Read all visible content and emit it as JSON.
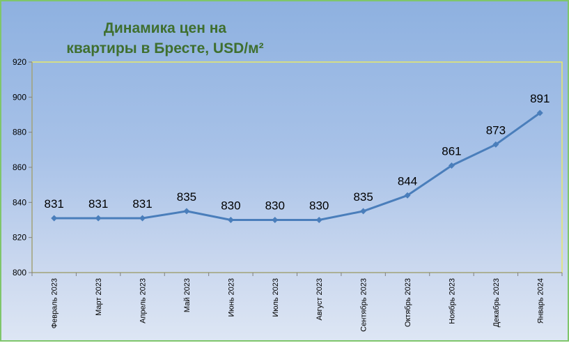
{
  "chart_data": {
    "type": "line",
    "title": "Динамика цен на\nквартиры в Бресте, USD/м²",
    "categories": [
      "Февраль 2023",
      "Март 2023",
      "Апрель 2023",
      "Май 2023",
      "Июнь 2023",
      "Июль 2023",
      "Август 2023",
      "Сентябрь 2023",
      "Октябрь 2023",
      "Ноябрь 2023",
      "Декабрь 2023",
      "Январь 2024"
    ],
    "series": [
      {
        "values": [
          831,
          831,
          831,
          835,
          830,
          830,
          830,
          835,
          844,
          861,
          873,
          891
        ]
      }
    ],
    "ylim": [
      800,
      920
    ],
    "yticks": [
      800,
      820,
      840,
      860,
      880,
      900,
      920
    ],
    "grid": false,
    "legend": "none",
    "colors": {
      "line": "#4a7ebb",
      "plot_border": "#e8e86a",
      "title": "#3f6f2f",
      "frame_border": "#7fc66b"
    }
  }
}
